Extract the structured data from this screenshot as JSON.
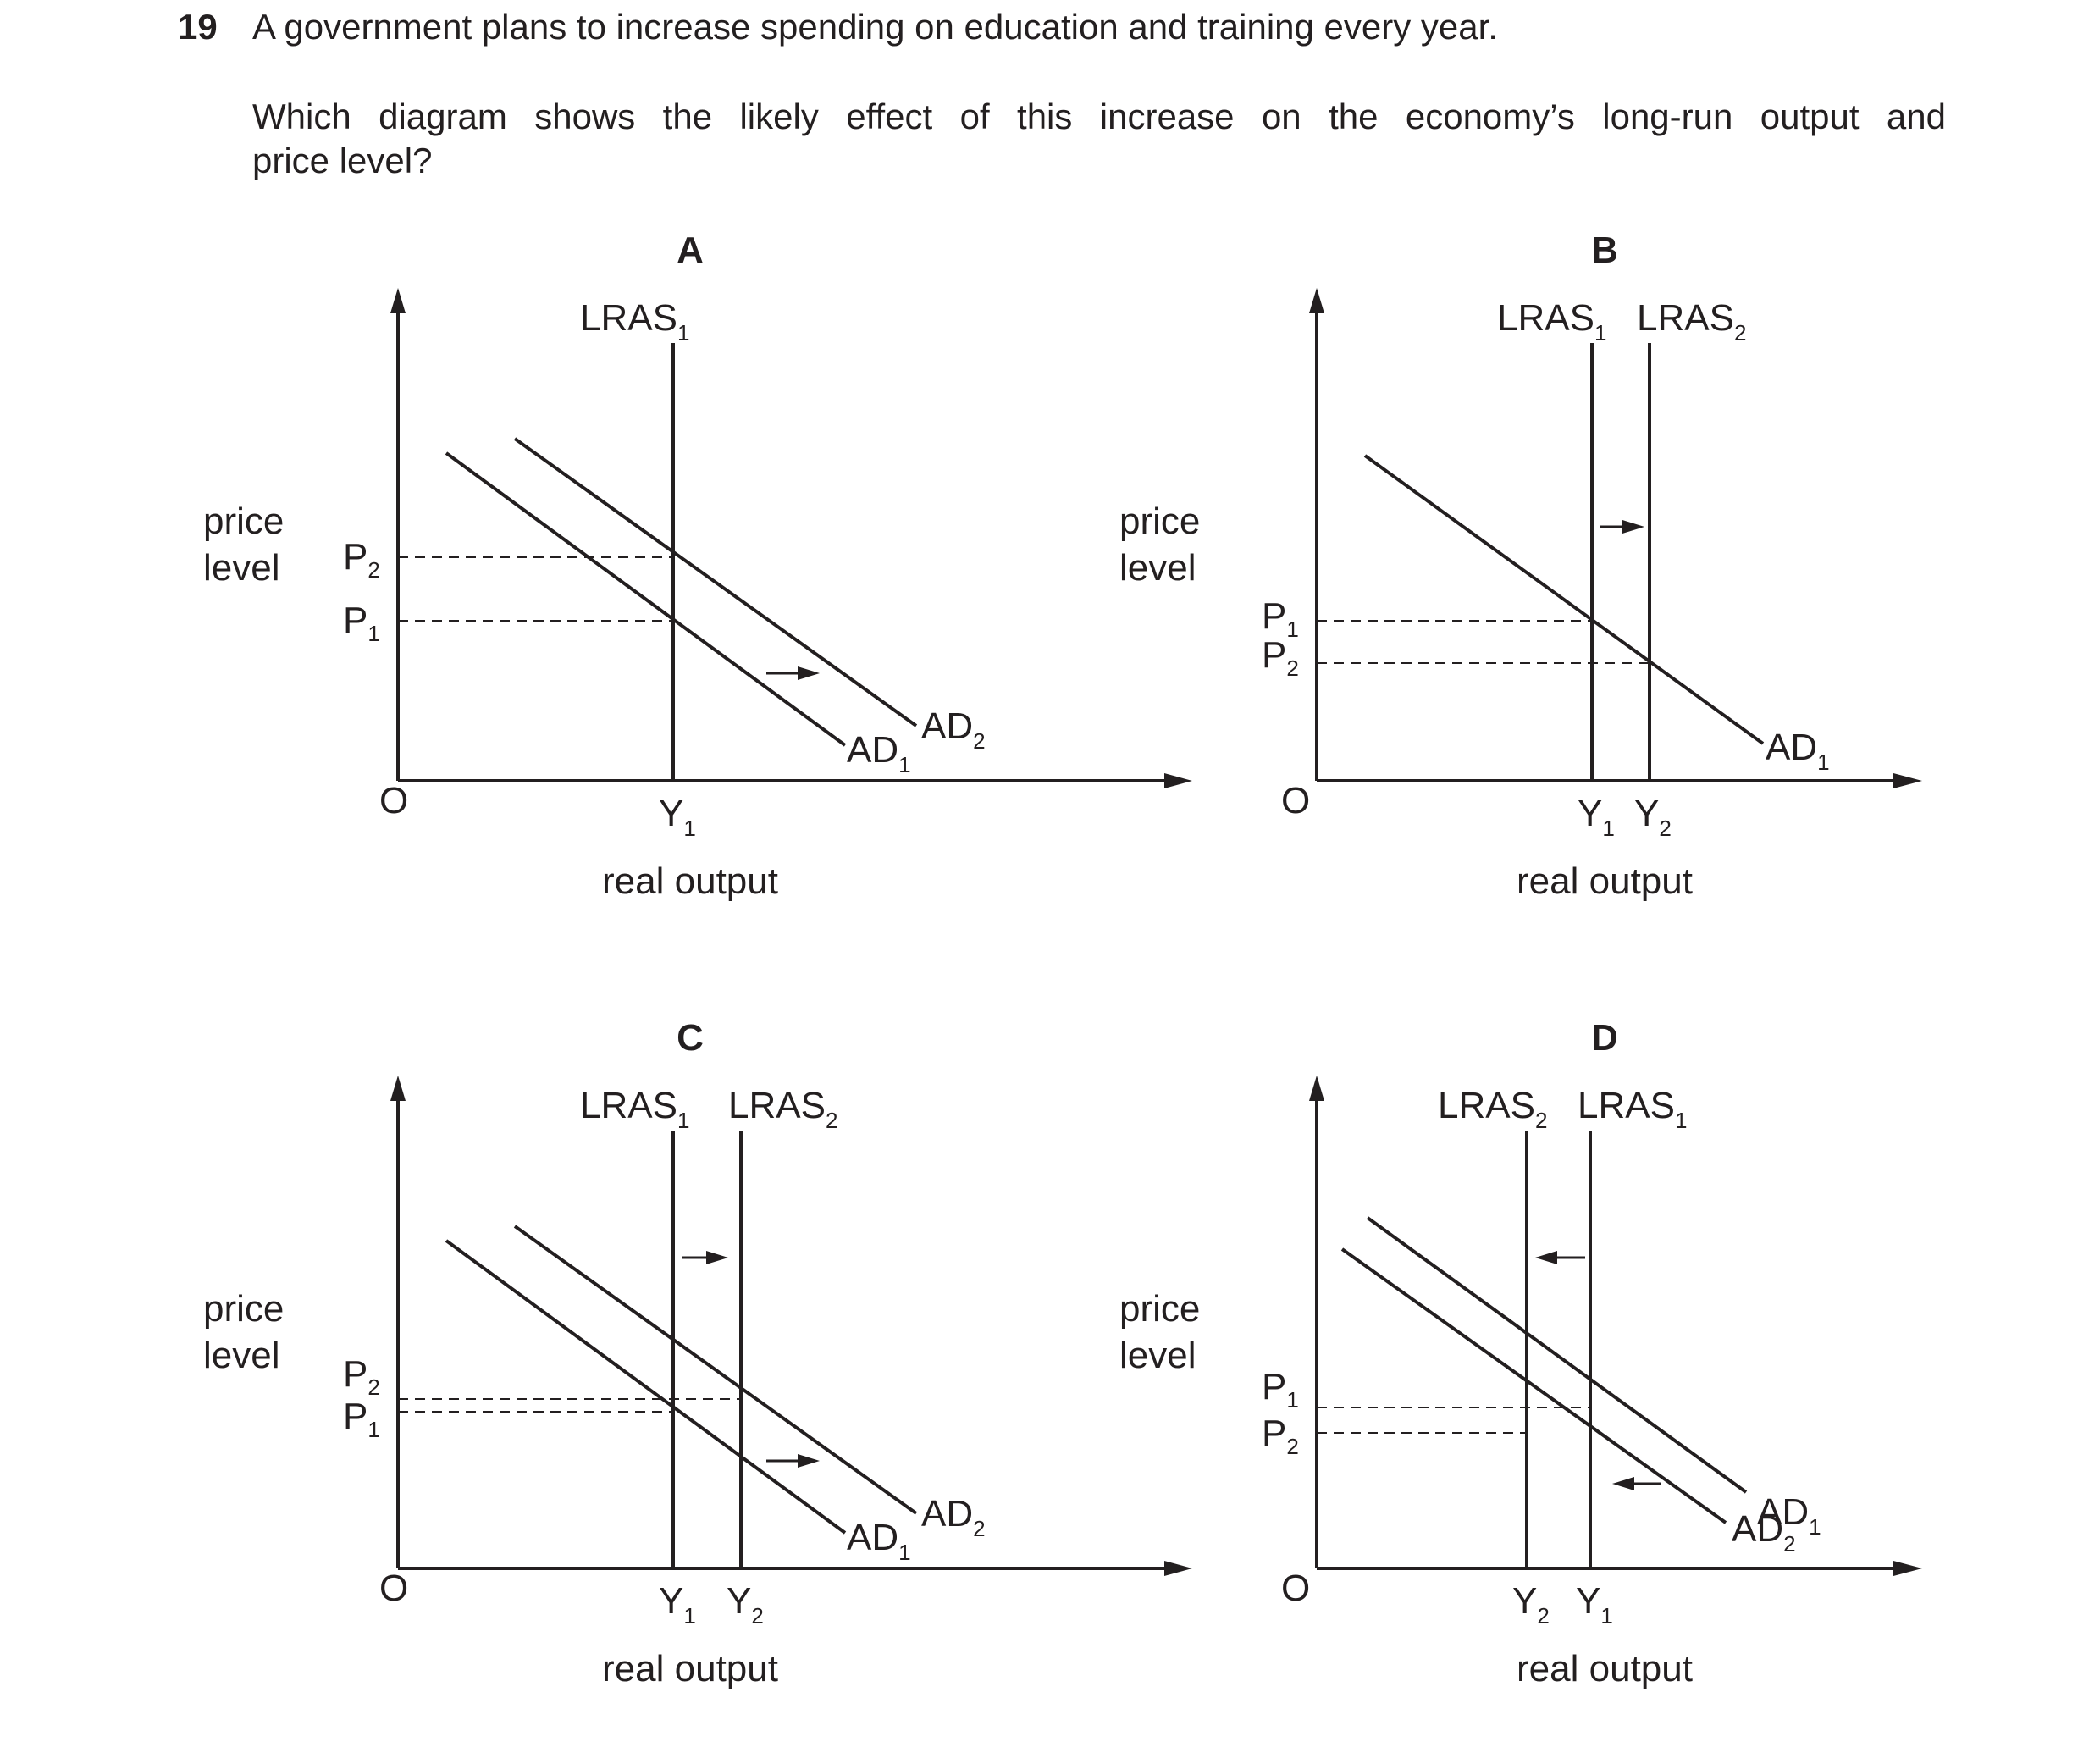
{
  "question": {
    "number": "19",
    "stem": "A government plans to increase spending on education and training every year.",
    "prompt_line1": "Which diagram shows the likely effect of this increase on the economy’s long-run output and",
    "prompt_line2": "price level?"
  },
  "common": {
    "ylabel_line1": "price",
    "ylabel_line2": "level",
    "xlabel": "real output",
    "origin": "O"
  },
  "diagrams": [
    {
      "option": "A",
      "lras": [
        {
          "label": "LRAS",
          "sub": "1",
          "y_label": "Y",
          "y_sub": "1"
        }
      ],
      "ad": [
        {
          "label": "AD",
          "sub": "1"
        },
        {
          "label": "AD",
          "sub": "2"
        }
      ],
      "prices": [
        {
          "label": "P",
          "sub": "2"
        },
        {
          "label": "P",
          "sub": "1"
        }
      ],
      "shift": {
        "ad": "right",
        "lras": "none"
      }
    },
    {
      "option": "B",
      "lras": [
        {
          "label": "LRAS",
          "sub": "1",
          "y_label": "Y",
          "y_sub": "1"
        },
        {
          "label": "LRAS",
          "sub": "2",
          "y_label": "Y",
          "y_sub": "2"
        }
      ],
      "ad": [
        {
          "label": "AD",
          "sub": "1"
        }
      ],
      "prices": [
        {
          "label": "P",
          "sub": "1"
        },
        {
          "label": "P",
          "sub": "2"
        }
      ],
      "shift": {
        "ad": "none",
        "lras": "right"
      }
    },
    {
      "option": "C",
      "lras": [
        {
          "label": "LRAS",
          "sub": "1",
          "y_label": "Y",
          "y_sub": "1"
        },
        {
          "label": "LRAS",
          "sub": "2",
          "y_label": "Y",
          "y_sub": "2"
        }
      ],
      "ad": [
        {
          "label": "AD",
          "sub": "1"
        },
        {
          "label": "AD",
          "sub": "2"
        }
      ],
      "prices": [
        {
          "label": "P",
          "sub": "2"
        },
        {
          "label": "P",
          "sub": "1"
        }
      ],
      "shift": {
        "ad": "right",
        "lras": "right"
      }
    },
    {
      "option": "D",
      "lras": [
        {
          "label": "LRAS",
          "sub": "2",
          "y_label": "Y",
          "y_sub": "2"
        },
        {
          "label": "LRAS",
          "sub": "1",
          "y_label": "Y",
          "y_sub": "1"
        }
      ],
      "ad": [
        {
          "label": "AD",
          "sub": "2"
        },
        {
          "label": "AD",
          "sub": "1"
        }
      ],
      "prices": [
        {
          "label": "P",
          "sub": "1"
        },
        {
          "label": "P",
          "sub": "2"
        }
      ],
      "shift": {
        "ad": "left",
        "lras": "left"
      }
    }
  ]
}
